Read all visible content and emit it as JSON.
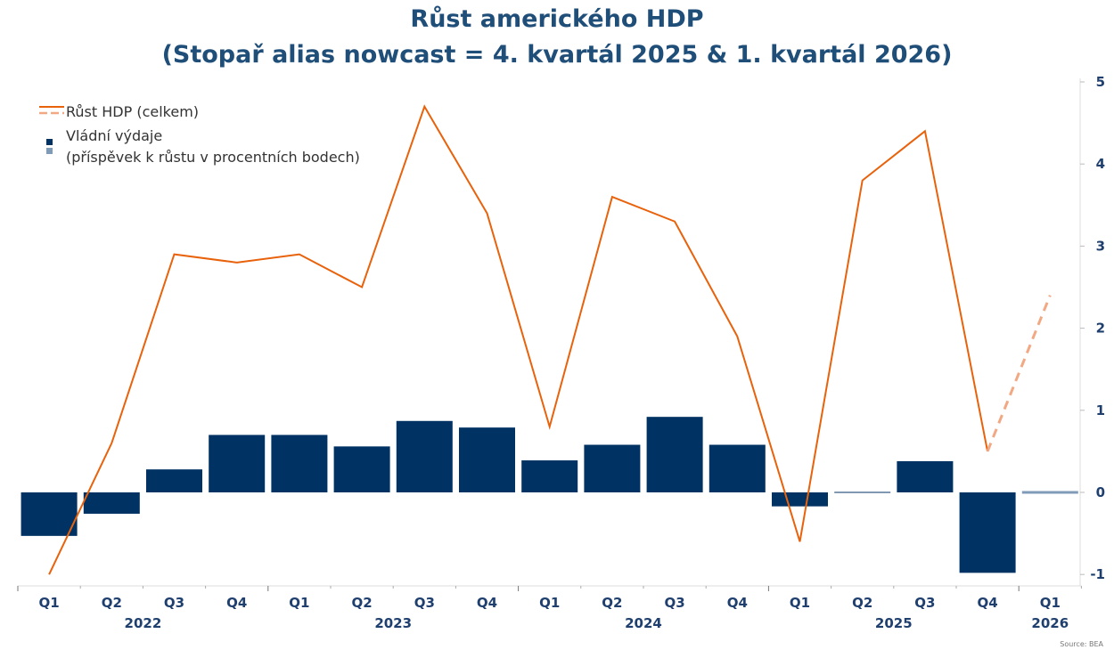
{
  "chart_data": {
    "type": "bar+line",
    "title": [
      "Růst amerického HDP",
      "(Stopař alias nowcast = 4. kvartál 2025 & 1. kvartál 2026)"
    ],
    "categories": [
      "Q1",
      "Q2",
      "Q3",
      "Q4",
      "Q1",
      "Q2",
      "Q3",
      "Q4",
      "Q1",
      "Q2",
      "Q3",
      "Q4",
      "Q1",
      "Q2",
      "Q3",
      "Q4",
      "Q1"
    ],
    "years": [
      {
        "label": "2022",
        "start": 0,
        "end": 3
      },
      {
        "label": "2023",
        "start": 4,
        "end": 7
      },
      {
        "label": "2024",
        "start": 8,
        "end": 11
      },
      {
        "label": "2025",
        "start": 12,
        "end": 15
      },
      {
        "label": "2026",
        "start": 16,
        "end": 16
      }
    ],
    "series": [
      {
        "name": "Růst HDP (celkem)",
        "type": "line",
        "color": "#e8620c",
        "nowcast_color": "#f2a882",
        "values": [
          -1.0,
          0.6,
          2.9,
          2.8,
          2.9,
          2.5,
          4.7,
          3.4,
          0.8,
          3.6,
          3.3,
          1.9,
          -0.6,
          3.8,
          4.4,
          0.5,
          2.4
        ],
        "nowcast_from_index": 15
      },
      {
        "name": "Vládní výdaje",
        "name_line2": "(příspěvek k růstu v procentních bodech)",
        "type": "bar",
        "color": "#003263",
        "nowcast_color": "#7f9bb8",
        "values": [
          -0.53,
          -0.26,
          0.28,
          0.7,
          0.7,
          0.56,
          0.87,
          0.79,
          0.39,
          0.58,
          0.92,
          0.58,
          -0.17,
          0.01,
          0.38,
          -0.98,
          -0.02
        ],
        "nowcast_from_index": 16
      }
    ],
    "yaxis": {
      "position": "right",
      "ylim": [
        -1,
        5
      ],
      "ticks": [
        -1,
        0,
        1,
        2,
        3,
        4,
        5
      ]
    },
    "legend_position": "top-left",
    "source": "Source: BEA"
  }
}
